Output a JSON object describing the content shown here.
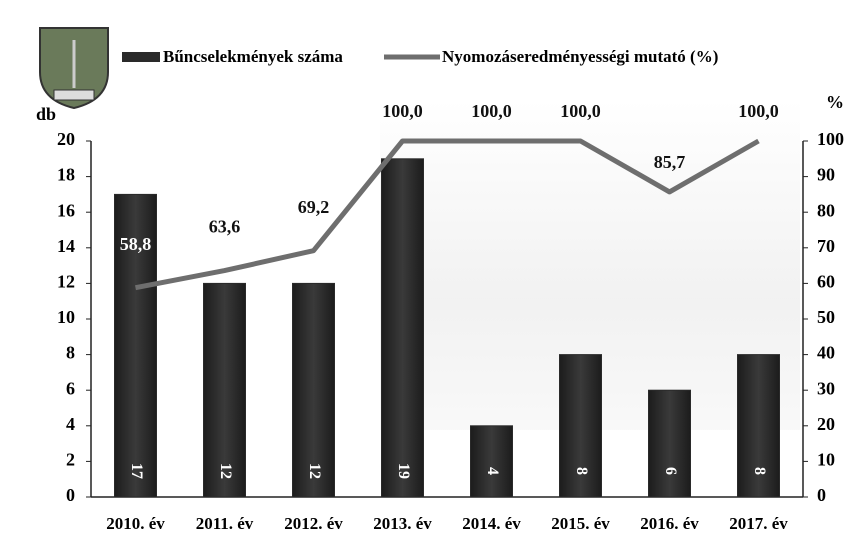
{
  "chart_data": {
    "type": "bar-line",
    "categories": [
      "2010. év",
      "2011. év",
      "2012. év",
      "2013. év",
      "2014. év",
      "2015. év",
      "2016. év",
      "2017. év"
    ],
    "series": [
      {
        "name": "Bűncselekmények száma",
        "color": "#2a2a2a",
        "type": "bar",
        "values": [
          17,
          12,
          12,
          19,
          4,
          8,
          6,
          8
        ]
      },
      {
        "name": "Nyomozáseredményességi mutató (%)",
        "color": "#6e6e6e",
        "type": "line",
        "axis": "y2",
        "values": [
          58.8,
          63.6,
          69.2,
          100.0,
          100.0,
          100.0,
          85.7,
          100.0
        ],
        "value_labels": [
          "58,8",
          "63,6",
          "69,2",
          "100,0",
          "100,0",
          "100,0",
          "85,7",
          "100,0"
        ]
      }
    ],
    "ylabel": "db",
    "y2label": "%",
    "ylim": [
      0,
      20
    ],
    "yticks": [
      0,
      2,
      4,
      6,
      8,
      10,
      12,
      14,
      16,
      18,
      20
    ],
    "y2lim": [
      0,
      100
    ],
    "y2ticks": [
      0,
      10,
      20,
      30,
      40,
      50,
      60,
      70,
      80,
      90,
      100
    ]
  }
}
